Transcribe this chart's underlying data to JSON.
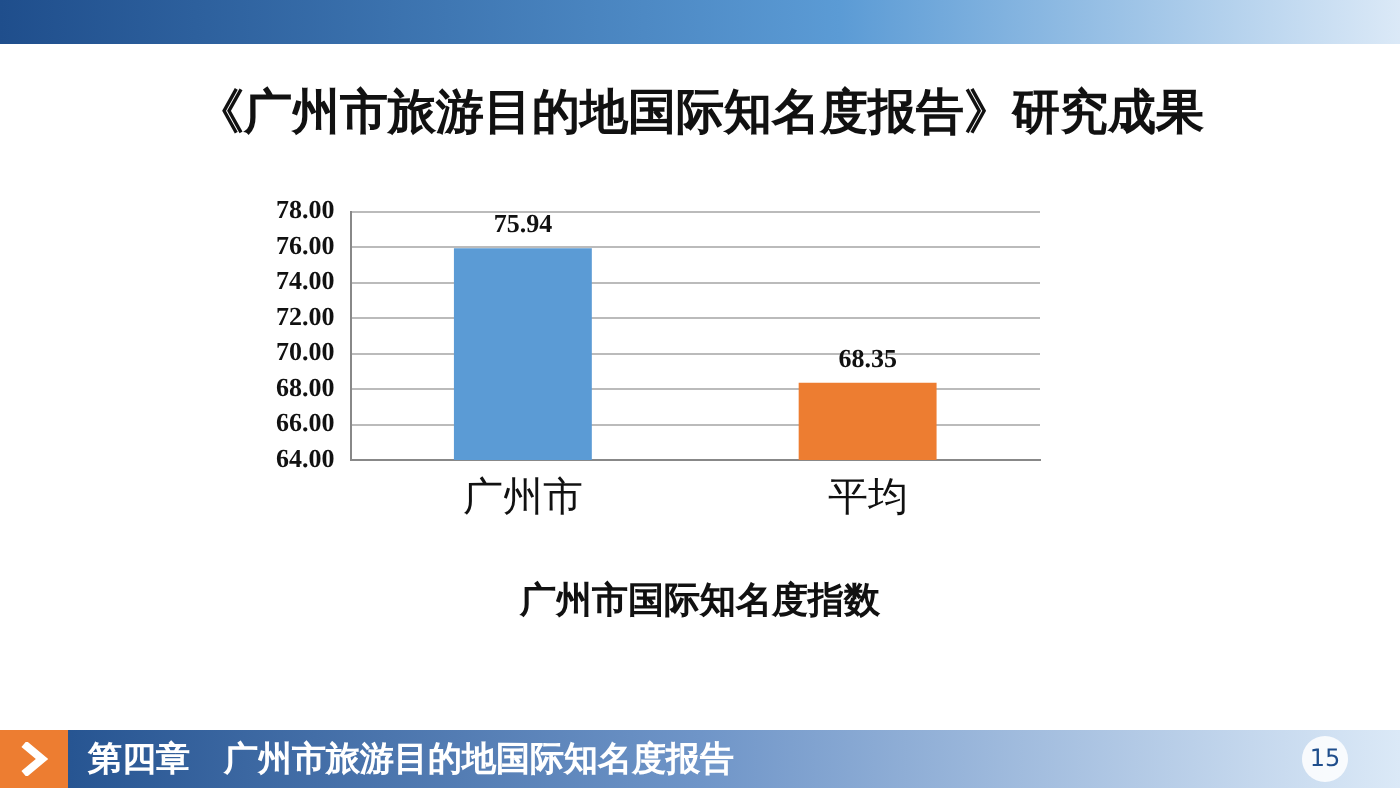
{
  "chart_data": {
    "type": "bar",
    "title": "《广州市旅游目的地国际知名度报告》研究成果",
    "xlabel": "广州市国际知名度指数",
    "categories": [
      "广州市",
      "平均"
    ],
    "values": [
      75.94,
      68.35
    ],
    "colors": [
      "#5b9bd5",
      "#ed7d31"
    ],
    "ylim": [
      64,
      78
    ],
    "yticks": [
      {
        "value": 64,
        "label": "64.00"
      },
      {
        "value": 66,
        "label": "66.00"
      },
      {
        "value": 68,
        "label": "68.00"
      },
      {
        "value": 70,
        "label": "70.00"
      },
      {
        "value": 72,
        "label": "72.00"
      },
      {
        "value": 74,
        "label": "74.00"
      },
      {
        "value": 76,
        "label": "76.00"
      },
      {
        "value": 78,
        "label": "78.00"
      }
    ],
    "grid": "y",
    "data_labels": true,
    "legend": false,
    "annotations": [
      "第四章　广州市旅游目的地国际知名度报告",
      "15"
    ]
  }
}
